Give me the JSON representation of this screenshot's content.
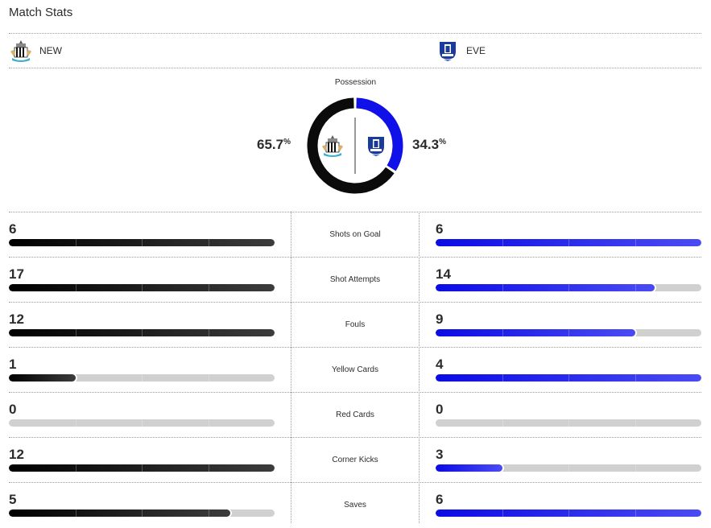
{
  "header": {
    "title": "Match Stats"
  },
  "teams": {
    "home": {
      "abbr": "NEW",
      "crest_icon": "newcastle-crest-icon"
    },
    "away": {
      "abbr": "EVE",
      "crest_icon": "everton-crest-icon"
    }
  },
  "possession": {
    "label": "Possession",
    "home_value": "65.7",
    "away_value": "34.3",
    "unit": "%",
    "home_fraction": 0.657,
    "away_fraction": 0.343
  },
  "stats": [
    {
      "label": "Shots on Goal",
      "home": "6",
      "away": "6",
      "home_fill": 1.0,
      "away_fill": 1.0
    },
    {
      "label": "Shot Attempts",
      "home": "17",
      "away": "14",
      "home_fill": 1.0,
      "away_fill": 0.824
    },
    {
      "label": "Fouls",
      "home": "12",
      "away": "9",
      "home_fill": 1.0,
      "away_fill": 0.75
    },
    {
      "label": "Yellow Cards",
      "home": "1",
      "away": "4",
      "home_fill": 0.25,
      "away_fill": 1.0
    },
    {
      "label": "Red Cards",
      "home": "0",
      "away": "0",
      "home_fill": 0,
      "away_fill": 0
    },
    {
      "label": "Corner Kicks",
      "home": "12",
      "away": "3",
      "home_fill": 1.0,
      "away_fill": 0.25
    },
    {
      "label": "Saves",
      "home": "5",
      "away": "6",
      "home_fill": 0.833,
      "away_fill": 1.0
    }
  ],
  "colors": {
    "home_bar": "#000000",
    "away_bar": "#1010e8",
    "track": "#d0d0d0"
  }
}
